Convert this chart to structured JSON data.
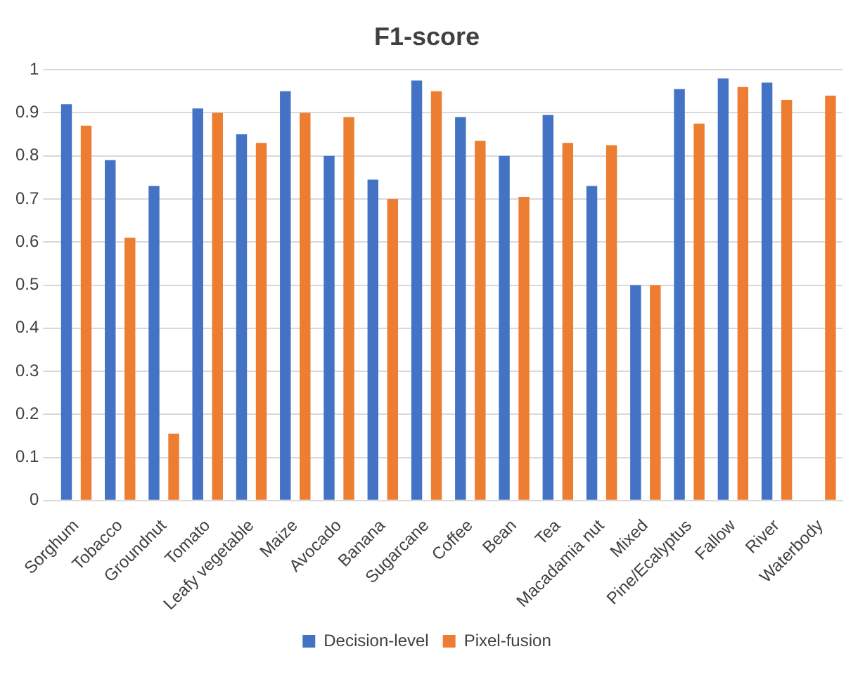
{
  "chart_data": {
    "type": "bar",
    "title": "F1-score",
    "categories": [
      "Sorghum",
      "Tobacco",
      "Groundnut",
      "Tomato",
      "Leafy vegetable",
      "Maize",
      "Avocado",
      "Banana",
      "Sugarcane",
      "Coffee",
      "Bean",
      "Tea",
      "Macadamia nut",
      "Mixed",
      "Pine/Ecalyptus",
      "Fallow",
      "River",
      "Waterbody"
    ],
    "series": [
      {
        "name": "Decision-level",
        "color": "#4472c4",
        "values": [
          0.92,
          0.79,
          0.73,
          0.91,
          0.85,
          0.95,
          0.8,
          0.745,
          0.975,
          0.89,
          0.8,
          0.895,
          0.73,
          0.5,
          0.955,
          0.98,
          0.97,
          null
        ]
      },
      {
        "name": "Pixel-fusion",
        "color": "#ed7d31",
        "values": [
          0.87,
          0.61,
          0.155,
          0.9,
          0.83,
          0.9,
          0.89,
          0.7,
          0.95,
          0.835,
          0.705,
          0.83,
          0.825,
          0.5,
          0.875,
          0.96,
          0.93,
          0.94
        ]
      }
    ],
    "ylim": [
      0,
      1
    ],
    "yticks": [
      0,
      0.1,
      0.2,
      0.3,
      0.4,
      0.5,
      0.6,
      0.7,
      0.8,
      0.9,
      1
    ],
    "grid": "y",
    "legend": "bottom"
  }
}
